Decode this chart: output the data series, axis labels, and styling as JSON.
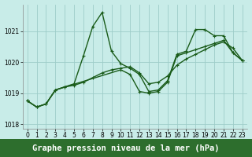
{
  "series": [
    {
      "name": "line1_spike",
      "x": [
        0,
        1,
        2,
        3,
        4,
        5,
        6,
        7,
        8,
        9,
        10,
        11,
        12,
        13,
        14,
        15,
        16,
        17,
        18,
        19,
        20,
        21,
        22,
        23
      ],
      "y": [
        1018.75,
        1018.55,
        1018.65,
        1019.1,
        1019.2,
        1019.3,
        1020.2,
        1021.15,
        1021.6,
        1020.35,
        1019.95,
        1019.8,
        1019.6,
        1019.05,
        1019.1,
        1019.4,
        1020.25,
        1020.35,
        1021.05,
        1021.05,
        1020.85,
        1020.85,
        1020.3,
        1020.05
      ]
    },
    {
      "name": "line2_smooth",
      "x": [
        0,
        1,
        2,
        3,
        4,
        5,
        6,
        7,
        8,
        9,
        10,
        11,
        12,
        13,
        14,
        15,
        16,
        17,
        18,
        19,
        20,
        21,
        22,
        23
      ],
      "y": [
        1018.75,
        1018.55,
        1018.65,
        1019.1,
        1019.2,
        1019.25,
        1019.35,
        1019.5,
        1019.65,
        1019.75,
        1019.8,
        1019.85,
        1019.65,
        1019.3,
        1019.35,
        1019.55,
        1019.9,
        1020.1,
        1020.25,
        1020.4,
        1020.55,
        1020.65,
        1020.45,
        1020.05
      ]
    },
    {
      "name": "line3_dip",
      "x": [
        0,
        1,
        2,
        3,
        10,
        11,
        12,
        13,
        14,
        15,
        16,
        17,
        18,
        19,
        20,
        21,
        22,
        23
      ],
      "y": [
        1018.75,
        1018.55,
        1018.65,
        1019.1,
        1019.75,
        1019.6,
        1019.05,
        1019.0,
        1019.05,
        1019.35,
        1020.2,
        1020.3,
        1020.4,
        1020.5,
        1020.6,
        1020.7,
        1020.3,
        1020.05
      ]
    }
  ],
  "line_color": "#1a5c1a",
  "marker": "+",
  "marker_size": 3.5,
  "line_width": 1.0,
  "bg_color": "#c8ece8",
  "grid_color": "#9eccc8",
  "xlabel": "Graphe pression niveau de la mer (hPa)",
  "xlabel_fontsize": 7.5,
  "xlim": [
    -0.5,
    23.5
  ],
  "ylim": [
    1017.85,
    1021.85
  ],
  "yticks": [
    1018,
    1019,
    1020,
    1021
  ],
  "xticks": [
    0,
    1,
    2,
    3,
    4,
    5,
    6,
    7,
    8,
    9,
    10,
    11,
    12,
    13,
    14,
    15,
    16,
    17,
    18,
    19,
    20,
    21,
    22,
    23
  ],
  "tick_fontsize": 5.5,
  "xlabel_bg_color": "#2d6e2d",
  "xlabel_text_color": "#ffffff"
}
